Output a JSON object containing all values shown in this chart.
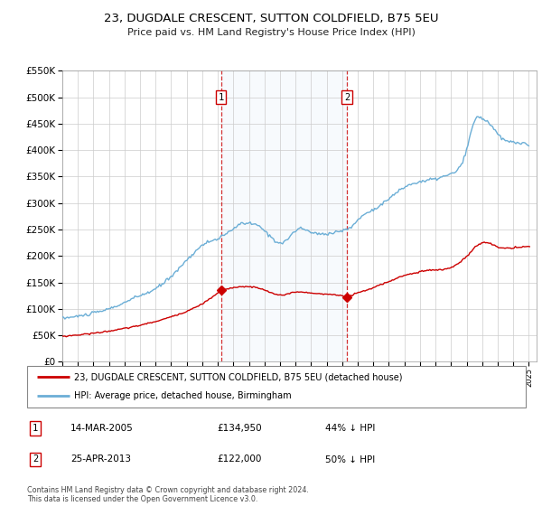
{
  "title": "23, DUGDALE CRESCENT, SUTTON COLDFIELD, B75 5EU",
  "subtitle": "Price paid vs. HM Land Registry's House Price Index (HPI)",
  "hpi_color": "#6baed6",
  "price_color": "#cc0000",
  "ylim": [
    0,
    550000
  ],
  "yticks": [
    0,
    50000,
    100000,
    150000,
    200000,
    250000,
    300000,
    350000,
    400000,
    450000,
    500000,
    550000
  ],
  "xlim_start": 1995.0,
  "xlim_end": 2025.5,
  "transaction1": {
    "year": 2005.2,
    "price": 134950,
    "label": "1"
  },
  "transaction2": {
    "year": 2013.3,
    "price": 122000,
    "label": "2"
  },
  "legend_line1": "23, DUGDALE CRESCENT, SUTTON COLDFIELD, B75 5EU (detached house)",
  "legend_line2": "HPI: Average price, detached house, Birmingham",
  "table_row1": [
    "1",
    "14-MAR-2005",
    "£134,950",
    "44% ↓ HPI"
  ],
  "table_row2": [
    "2",
    "25-APR-2013",
    "£122,000",
    "50% ↓ HPI"
  ],
  "footer": "Contains HM Land Registry data © Crown copyright and database right 2024.\nThis data is licensed under the Open Government Licence v3.0."
}
